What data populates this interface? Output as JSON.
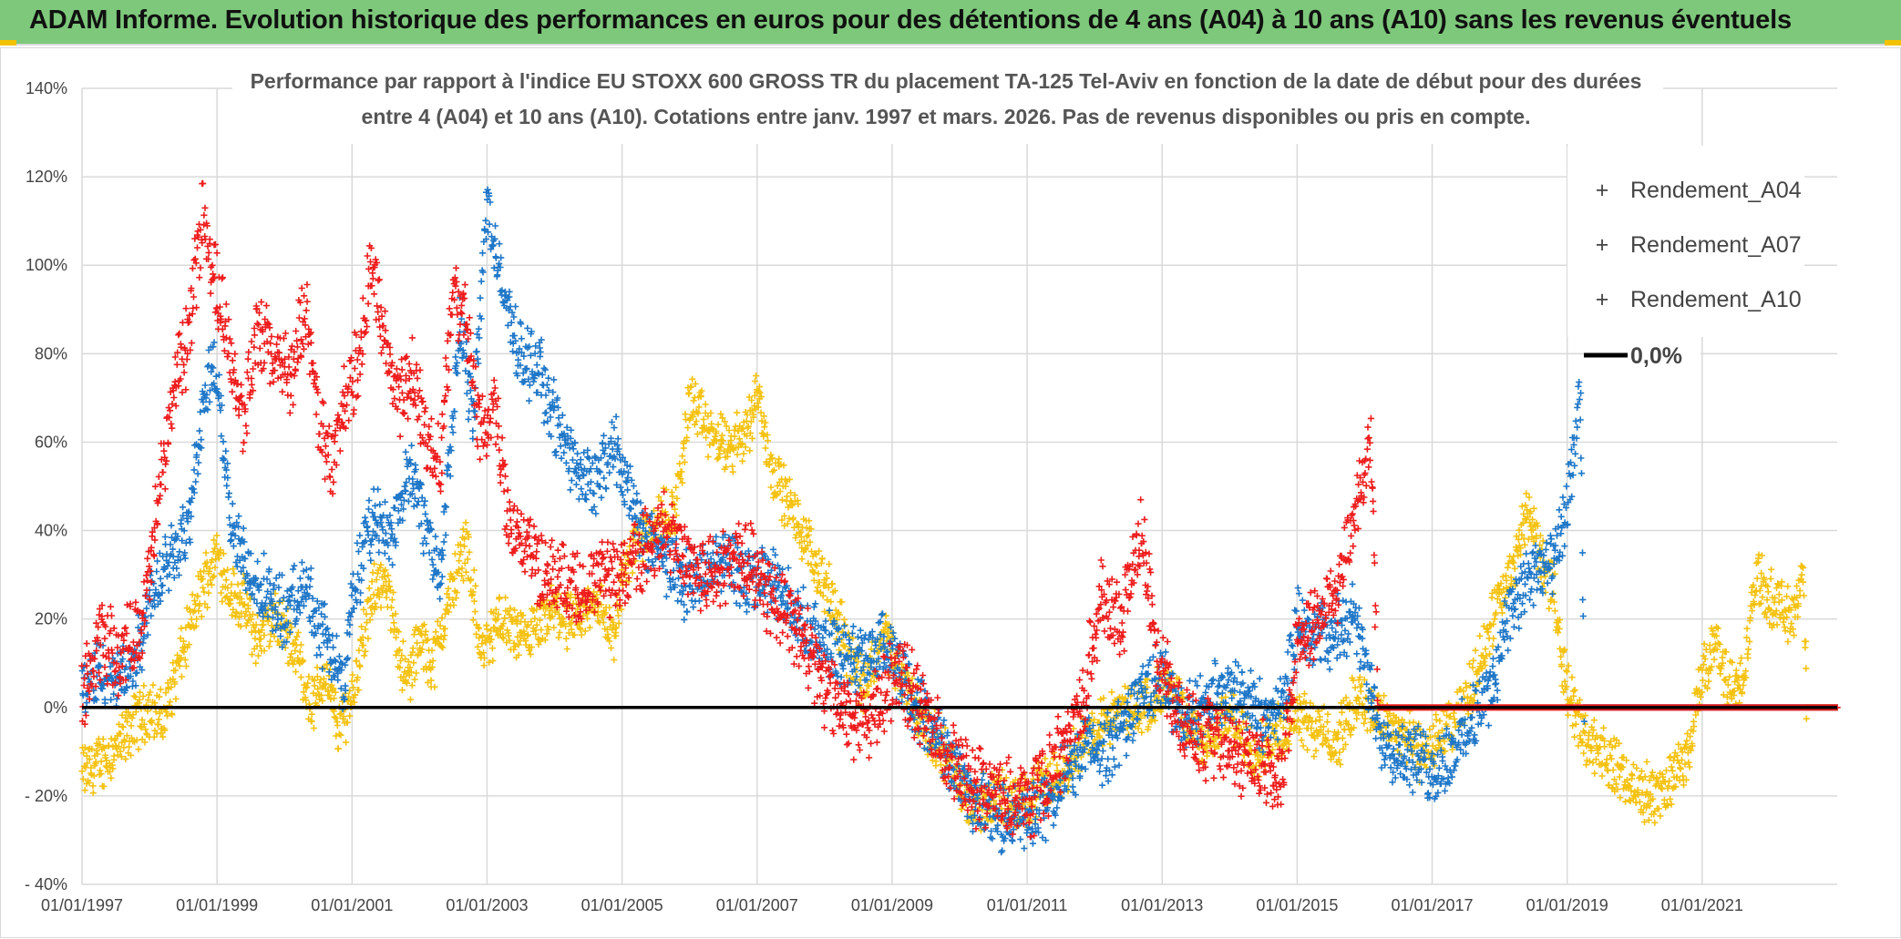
{
  "banner": {
    "title": "ADAM Informe. Evolution historique des performances en euros pour des détentions de 4 ans (A04) à 10 ans (A10) sans les revenus éventuels"
  },
  "colors": {
    "banner_bg": "#7dc87a",
    "A04": "#f5c211",
    "A07": "#1f77c8",
    "A10": "#ee1c1c",
    "zero_line": "#000000",
    "grid": "#d9d9d9"
  },
  "chart_data": {
    "type": "scatter",
    "title_lines": [
      "Performance par rapport à l'indice EU STOXX 600 GROSS TR  du placement TA-125 Tel-Aviv en fonction de la date de début pour des durées",
      "entre 4 (A04) et 10 ans (A10). Cotations entre janv. 1997 et mars. 2026. Pas de revenus disponibles ou pris en compte."
    ],
    "x_range": [
      1997.0,
      2023.0
    ],
    "y_range": [
      -40,
      140
    ],
    "x_ticks": [
      {
        "value": 1997,
        "label": "01/01/1997"
      },
      {
        "value": 1999,
        "label": "01/01/1999"
      },
      {
        "value": 2001,
        "label": "01/01/2001"
      },
      {
        "value": 2003,
        "label": "01/01/2003"
      },
      {
        "value": 2005,
        "label": "01/01/2005"
      },
      {
        "value": 2007,
        "label": "01/01/2007"
      },
      {
        "value": 2009,
        "label": "01/01/2009"
      },
      {
        "value": 2011,
        "label": "01/01/2011"
      },
      {
        "value": 2013,
        "label": "01/01/2013"
      },
      {
        "value": 2015,
        "label": "01/01/2015"
      },
      {
        "value": 2017,
        "label": "01/01/2017"
      },
      {
        "value": 2019,
        "label": "01/01/2019"
      },
      {
        "value": 2021,
        "label": "01/01/2021"
      }
    ],
    "y_ticks": [
      {
        "value": 140,
        "label": "140%"
      },
      {
        "value": 120,
        "label": "120%"
      },
      {
        "value": 100,
        "label": "100%"
      },
      {
        "value": 80,
        "label": "80%"
      },
      {
        "value": 60,
        "label": "60%"
      },
      {
        "value": 40,
        "label": "40%"
      },
      {
        "value": 20,
        "label": "20%"
      },
      {
        "value": 0,
        "label": "0%"
      },
      {
        "value": -20,
        "label": "- 20%"
      },
      {
        "value": -40,
        "label": "- 40%"
      }
    ],
    "legend": [
      {
        "name": "Rendement_A04",
        "marker": "+",
        "color_key": "A04"
      },
      {
        "name": "Rendement_A07",
        "marker": "+",
        "color_key": "A07"
      },
      {
        "name": "Rendement_A10",
        "marker": "+",
        "color_key": "A10"
      },
      {
        "name": "0,0%",
        "marker": "line",
        "color_key": "zero_line"
      }
    ],
    "series": [
      {
        "name": "Rendement_A04",
        "color_key": "A04",
        "noise": 5,
        "points": [
          [
            1997.0,
            -15
          ],
          [
            1997.3,
            -12
          ],
          [
            1997.6,
            -8
          ],
          [
            1997.8,
            -3
          ],
          [
            1998.0,
            0
          ],
          [
            1998.2,
            -3
          ],
          [
            1998.4,
            8
          ],
          [
            1998.6,
            18
          ],
          [
            1998.8,
            28
          ],
          [
            1999.0,
            35
          ],
          [
            1999.2,
            26
          ],
          [
            1999.4,
            23
          ],
          [
            1999.6,
            15
          ],
          [
            1999.8,
            20
          ],
          [
            2000.0,
            18
          ],
          [
            2000.2,
            12
          ],
          [
            2000.4,
            0
          ],
          [
            2000.6,
            8
          ],
          [
            2000.8,
            -5
          ],
          [
            2001.0,
            3
          ],
          [
            2001.2,
            18
          ],
          [
            2001.4,
            30
          ],
          [
            2001.6,
            22
          ],
          [
            2001.8,
            5
          ],
          [
            2002.0,
            15
          ],
          [
            2002.2,
            10
          ],
          [
            2002.5,
            28
          ],
          [
            2002.7,
            38
          ],
          [
            2002.9,
            12
          ],
          [
            2003.2,
            20
          ],
          [
            2003.5,
            15
          ],
          [
            2003.8,
            18
          ],
          [
            2004.0,
            22
          ],
          [
            2004.3,
            18
          ],
          [
            2004.6,
            25
          ],
          [
            2004.9,
            15
          ],
          [
            2005.0,
            30
          ],
          [
            2005.2,
            38
          ],
          [
            2005.5,
            42
          ],
          [
            2005.8,
            45
          ],
          [
            2006.0,
            70
          ],
          [
            2006.3,
            62
          ],
          [
            2006.6,
            58
          ],
          [
            2006.9,
            65
          ],
          [
            2007.0,
            72
          ],
          [
            2007.2,
            55
          ],
          [
            2007.5,
            45
          ],
          [
            2007.8,
            35
          ],
          [
            2008.0,
            28
          ],
          [
            2008.3,
            15
          ],
          [
            2008.6,
            5
          ],
          [
            2008.9,
            18
          ],
          [
            2009.0,
            12
          ],
          [
            2009.2,
            5
          ],
          [
            2009.5,
            -5
          ],
          [
            2009.8,
            -10
          ],
          [
            2010.0,
            -18
          ],
          [
            2010.3,
            -22
          ],
          [
            2010.6,
            -20
          ],
          [
            2010.9,
            -22
          ],
          [
            2011.2,
            -18
          ],
          [
            2011.5,
            -15
          ],
          [
            2011.8,
            -8
          ],
          [
            2012.0,
            -5
          ],
          [
            2012.3,
            -2
          ],
          [
            2012.6,
            0
          ],
          [
            2012.9,
            2
          ],
          [
            2013.1,
            5
          ],
          [
            2013.4,
            -5
          ],
          [
            2013.7,
            -8
          ],
          [
            2014.0,
            -2
          ],
          [
            2014.4,
            -10
          ],
          [
            2014.8,
            -5
          ],
          [
            2015.0,
            0
          ],
          [
            2015.3,
            -5
          ],
          [
            2015.6,
            -8
          ],
          [
            2015.9,
            3
          ],
          [
            2016.2,
            -2
          ],
          [
            2016.5,
            -5
          ],
          [
            2016.8,
            -10
          ],
          [
            2017.0,
            -8
          ],
          [
            2017.3,
            -5
          ],
          [
            2017.6,
            5
          ],
          [
            2017.8,
            15
          ],
          [
            2018.0,
            25
          ],
          [
            2018.2,
            30
          ],
          [
            2018.4,
            45
          ],
          [
            2018.6,
            35
          ],
          [
            2018.8,
            25
          ],
          [
            2019.0,
            5
          ],
          [
            2019.2,
            -5
          ],
          [
            2019.5,
            -10
          ],
          [
            2019.8,
            -15
          ],
          [
            2020.0,
            -18
          ],
          [
            2020.3,
            -20
          ],
          [
            2020.6,
            -15
          ],
          [
            2020.8,
            -10
          ],
          [
            2021.0,
            8
          ],
          [
            2021.2,
            15
          ],
          [
            2021.4,
            5
          ],
          [
            2021.6,
            5
          ],
          [
            2021.8,
            30
          ],
          [
            2022.0,
            25
          ],
          [
            2022.3,
            20
          ],
          [
            2022.5,
            30
          ],
          [
            2022.55,
            0
          ],
          [
            2023.0,
            0
          ]
        ]
      },
      {
        "name": "Rendement_A07",
        "color_key": "A07",
        "noise": 6,
        "points": [
          [
            1997.0,
            3
          ],
          [
            1997.2,
            8
          ],
          [
            1997.5,
            6
          ],
          [
            1997.8,
            10
          ],
          [
            1998.0,
            25
          ],
          [
            1998.3,
            35
          ],
          [
            1998.6,
            42
          ],
          [
            1998.8,
            70
          ],
          [
            1999.0,
            78
          ],
          [
            1999.2,
            40
          ],
          [
            1999.5,
            30
          ],
          [
            1999.8,
            25
          ],
          [
            2000.0,
            20
          ],
          [
            2000.3,
            28
          ],
          [
            2000.6,
            15
          ],
          [
            2000.9,
            5
          ],
          [
            2001.0,
            25
          ],
          [
            2001.3,
            42
          ],
          [
            2001.6,
            40
          ],
          [
            2001.9,
            55
          ],
          [
            2002.0,
            45
          ],
          [
            2002.3,
            30
          ],
          [
            2002.6,
            85
          ],
          [
            2002.8,
            65
          ],
          [
            2003.0,
            115
          ],
          [
            2003.2,
            95
          ],
          [
            2003.5,
            80
          ],
          [
            2003.8,
            75
          ],
          [
            2004.0,
            65
          ],
          [
            2004.3,
            55
          ],
          [
            2004.6,
            50
          ],
          [
            2004.9,
            60
          ],
          [
            2005.0,
            52
          ],
          [
            2005.3,
            40
          ],
          [
            2005.6,
            35
          ],
          [
            2005.9,
            28
          ],
          [
            2006.2,
            30
          ],
          [
            2006.5,
            35
          ],
          [
            2006.8,
            28
          ],
          [
            2007.0,
            30
          ],
          [
            2007.3,
            28
          ],
          [
            2007.6,
            20
          ],
          [
            2007.9,
            15
          ],
          [
            2008.2,
            12
          ],
          [
            2008.5,
            10
          ],
          [
            2008.8,
            15
          ],
          [
            2009.0,
            12
          ],
          [
            2009.3,
            3
          ],
          [
            2009.6,
            -5
          ],
          [
            2009.9,
            -12
          ],
          [
            2010.2,
            -20
          ],
          [
            2010.5,
            -25
          ],
          [
            2010.8,
            -26
          ],
          [
            2011.0,
            -25
          ],
          [
            2011.3,
            -22
          ],
          [
            2011.6,
            -15
          ],
          [
            2011.9,
            -8
          ],
          [
            2012.2,
            -10
          ],
          [
            2012.5,
            -2
          ],
          [
            2012.8,
            5
          ],
          [
            2013.0,
            8
          ],
          [
            2013.3,
            -3
          ],
          [
            2013.6,
            0
          ],
          [
            2013.9,
            5
          ],
          [
            2014.2,
            3
          ],
          [
            2014.5,
            -2
          ],
          [
            2014.8,
            0
          ],
          [
            2015.0,
            20
          ],
          [
            2015.2,
            18
          ],
          [
            2015.5,
            15
          ],
          [
            2015.8,
            22
          ],
          [
            2016.0,
            10
          ],
          [
            2016.2,
            -5
          ],
          [
            2016.5,
            -10
          ],
          [
            2016.8,
            -12
          ],
          [
            2017.0,
            -15
          ],
          [
            2017.3,
            -10
          ],
          [
            2017.6,
            -3
          ],
          [
            2017.9,
            5
          ],
          [
            2018.1,
            20
          ],
          [
            2018.3,
            25
          ],
          [
            2018.5,
            30
          ],
          [
            2018.8,
            32
          ],
          [
            2019.0,
            45
          ],
          [
            2019.2,
            70
          ],
          [
            2019.25,
            0
          ],
          [
            2023.0,
            0
          ]
        ]
      },
      {
        "name": "Rendement_A10",
        "color_key": "A10",
        "noise": 7,
        "points": [
          [
            1997.0,
            3
          ],
          [
            1997.3,
            15
          ],
          [
            1997.6,
            12
          ],
          [
            1997.9,
            20
          ],
          [
            1998.0,
            30
          ],
          [
            1998.2,
            55
          ],
          [
            1998.4,
            75
          ],
          [
            1998.6,
            85
          ],
          [
            1998.8,
            115
          ],
          [
            1998.9,
            100
          ],
          [
            1999.0,
            95
          ],
          [
            1999.2,
            80
          ],
          [
            1999.4,
            65
          ],
          [
            1999.6,
            85
          ],
          [
            1999.9,
            78
          ],
          [
            2000.1,
            75
          ],
          [
            2000.3,
            90
          ],
          [
            2000.5,
            65
          ],
          [
            2000.7,
            55
          ],
          [
            2000.9,
            70
          ],
          [
            2001.1,
            80
          ],
          [
            2001.3,
            100
          ],
          [
            2001.5,
            80
          ],
          [
            2001.7,
            70
          ],
          [
            2001.9,
            75
          ],
          [
            2002.1,
            60
          ],
          [
            2002.3,
            55
          ],
          [
            2002.5,
            95
          ],
          [
            2002.7,
            85
          ],
          [
            2002.9,
            60
          ],
          [
            2003.1,
            70
          ],
          [
            2003.3,
            45
          ],
          [
            2003.6,
            35
          ],
          [
            2003.9,
            30
          ],
          [
            2004.1,
            28
          ],
          [
            2004.4,
            25
          ],
          [
            2004.7,
            30
          ],
          [
            2005.0,
            30
          ],
          [
            2005.3,
            35
          ],
          [
            2005.6,
            40
          ],
          [
            2005.9,
            35
          ],
          [
            2006.2,
            30
          ],
          [
            2006.5,
            32
          ],
          [
            2006.8,
            35
          ],
          [
            2007.1,
            28
          ],
          [
            2007.4,
            22
          ],
          [
            2007.7,
            15
          ],
          [
            2008.0,
            5
          ],
          [
            2008.3,
            0
          ],
          [
            2008.6,
            -5
          ],
          [
            2008.9,
            5
          ],
          [
            2009.1,
            8
          ],
          [
            2009.4,
            0
          ],
          [
            2009.7,
            -8
          ],
          [
            2010.0,
            -15
          ],
          [
            2010.3,
            -18
          ],
          [
            2010.6,
            -20
          ],
          [
            2010.9,
            -22
          ],
          [
            2011.2,
            -18
          ],
          [
            2011.5,
            -10
          ],
          [
            2011.8,
            0
          ],
          [
            2012.1,
            25
          ],
          [
            2012.4,
            20
          ],
          [
            2012.7,
            40
          ],
          [
            2012.9,
            15
          ],
          [
            2013.1,
            5
          ],
          [
            2013.4,
            -5
          ],
          [
            2013.7,
            -8
          ],
          [
            2014.0,
            -10
          ],
          [
            2014.4,
            -12
          ],
          [
            2014.8,
            -15
          ],
          [
            2015.0,
            15
          ],
          [
            2015.3,
            20
          ],
          [
            2015.6,
            28
          ],
          [
            2015.9,
            45
          ],
          [
            2016.1,
            60
          ],
          [
            2016.2,
            0
          ],
          [
            2023.0,
            0
          ]
        ]
      }
    ]
  }
}
